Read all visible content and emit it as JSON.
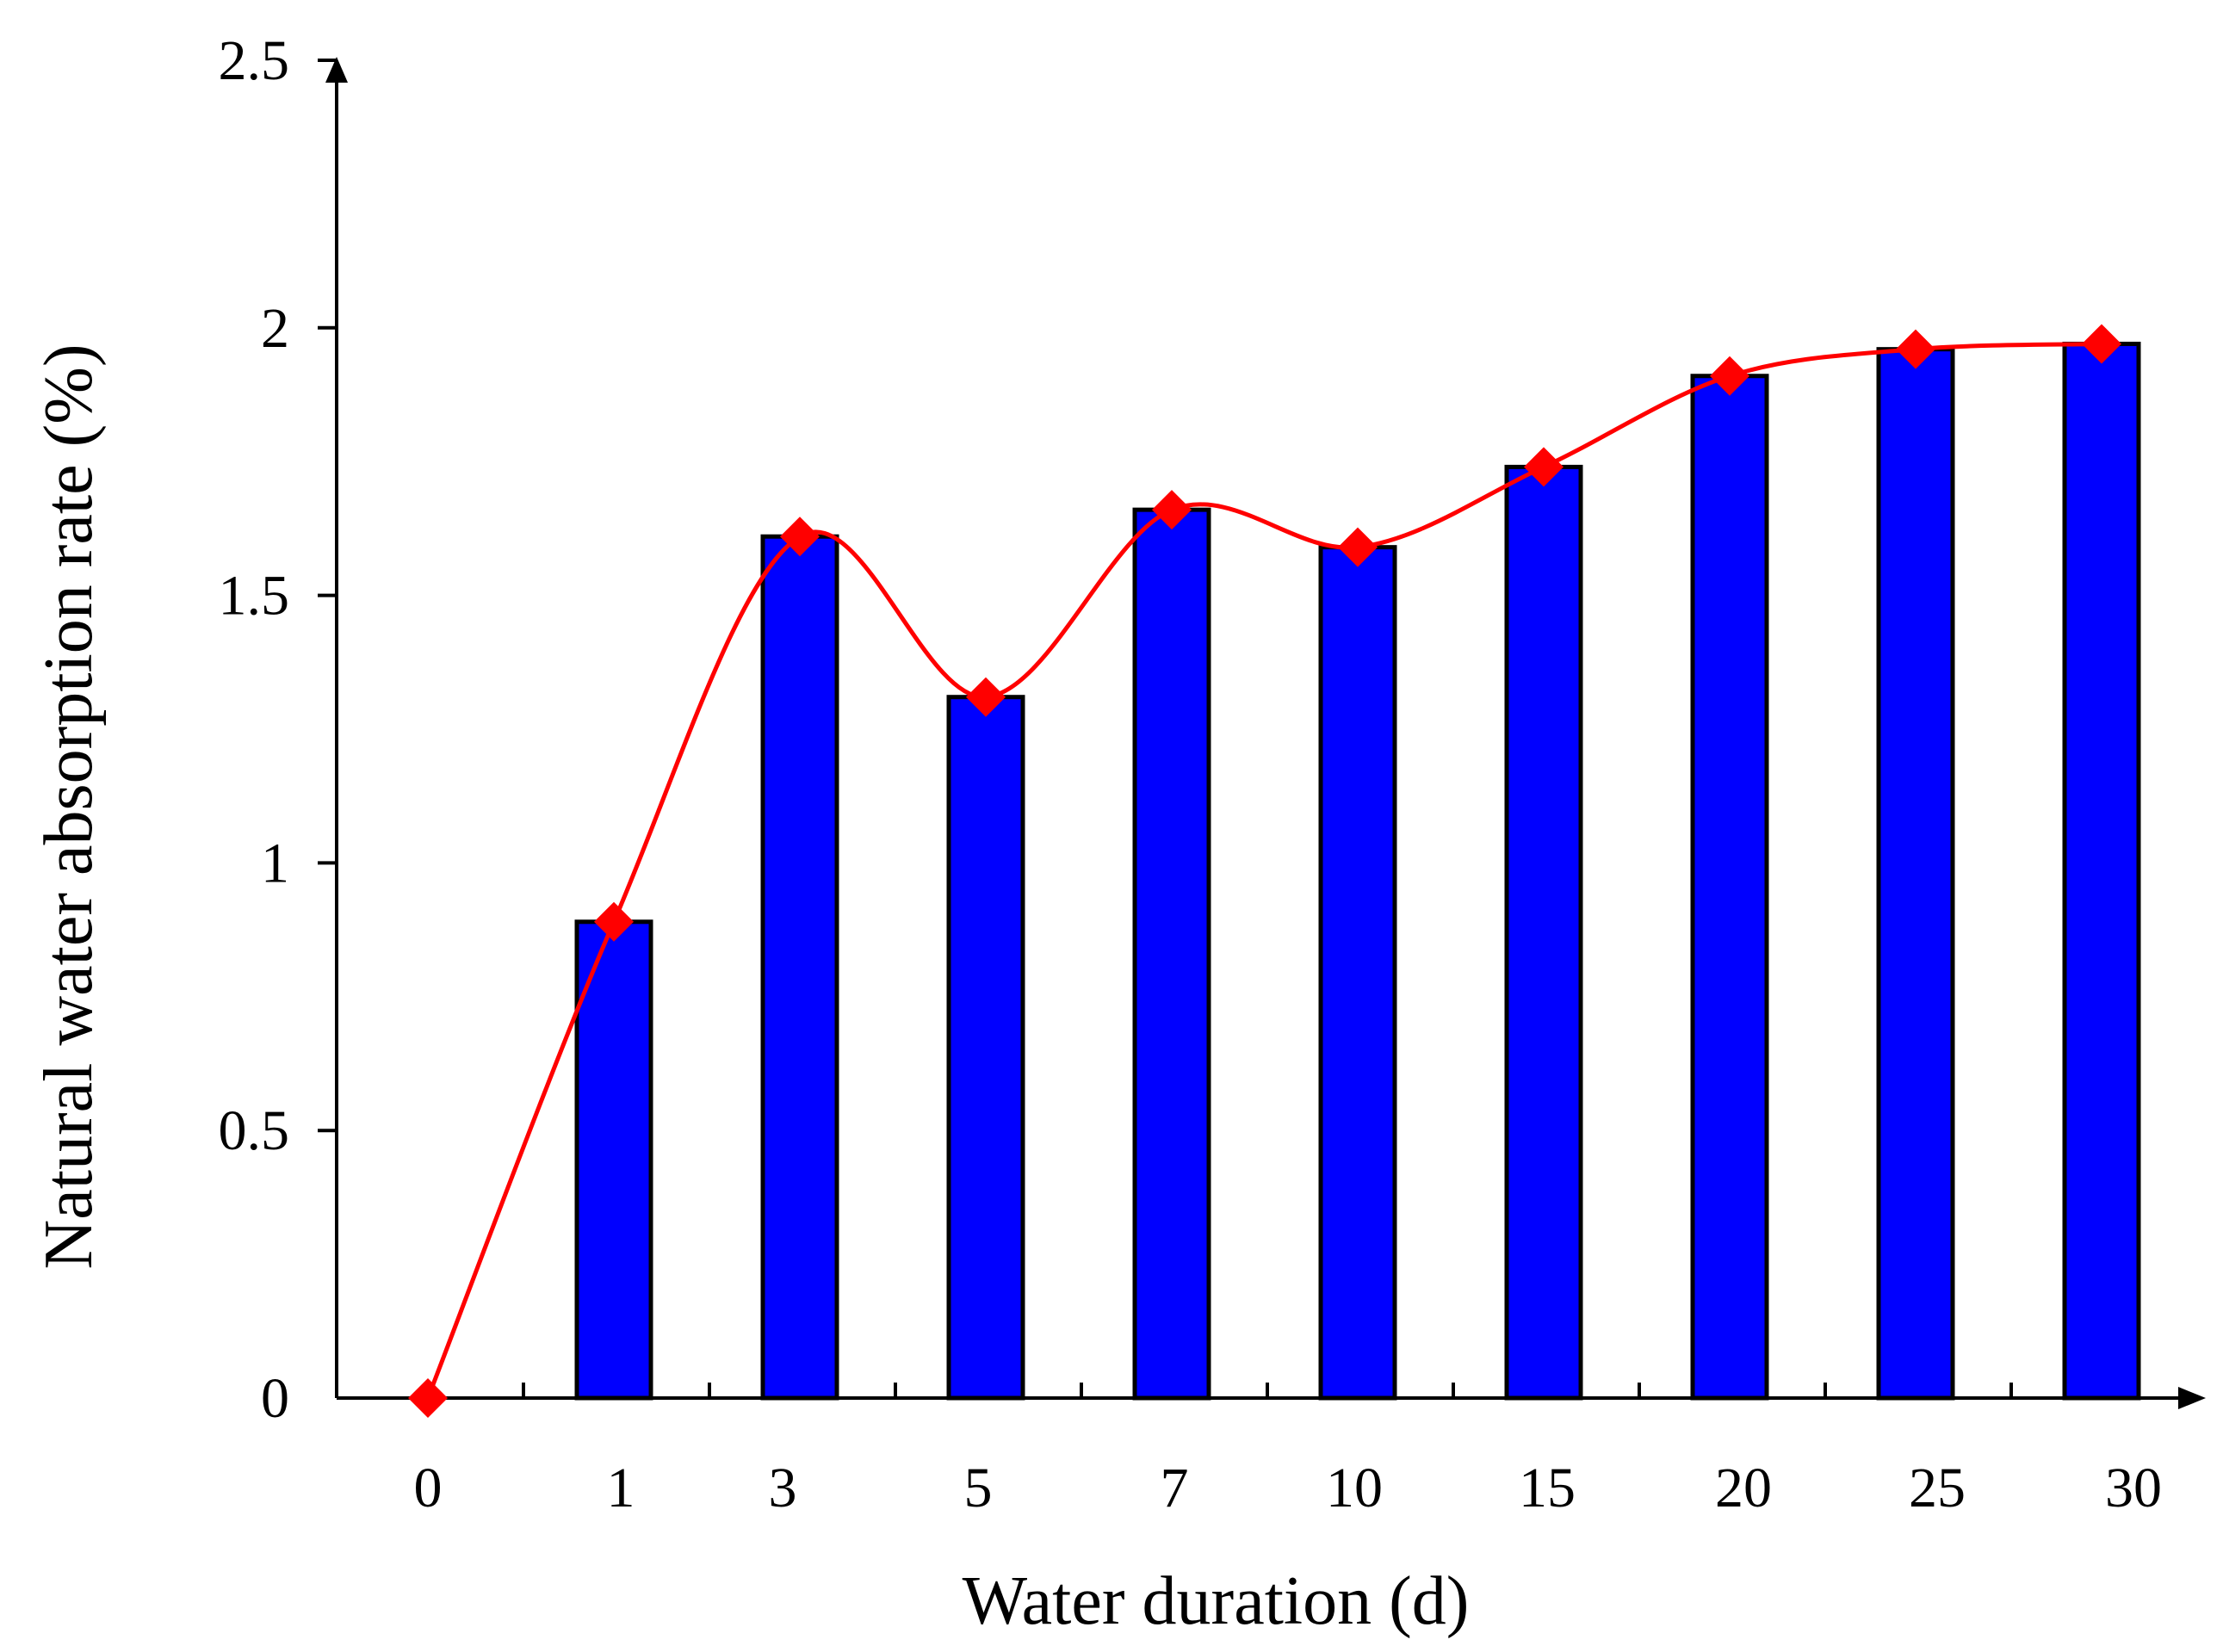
{
  "chart_data": {
    "type": "bar",
    "categories": [
      "0",
      "1",
      "3",
      "5",
      "7",
      "10",
      "15",
      "20",
      "25",
      "30"
    ],
    "values": [
      0,
      0.89,
      1.61,
      1.31,
      1.66,
      1.59,
      1.74,
      1.91,
      1.96,
      1.97
    ],
    "line_values": [
      0,
      0.89,
      1.61,
      1.31,
      1.66,
      1.59,
      1.74,
      1.91,
      1.96,
      1.97
    ],
    "ylim": [
      0,
      2.5
    ],
    "yticks": [
      "0",
      "0.5",
      "1",
      "1.5",
      "2",
      "2.5"
    ],
    "xlabel": "Water duration (d)",
    "ylabel": "Natural water absorption rate (%)",
    "bar_color": "#0000ff",
    "line_color": "#ff0000"
  }
}
